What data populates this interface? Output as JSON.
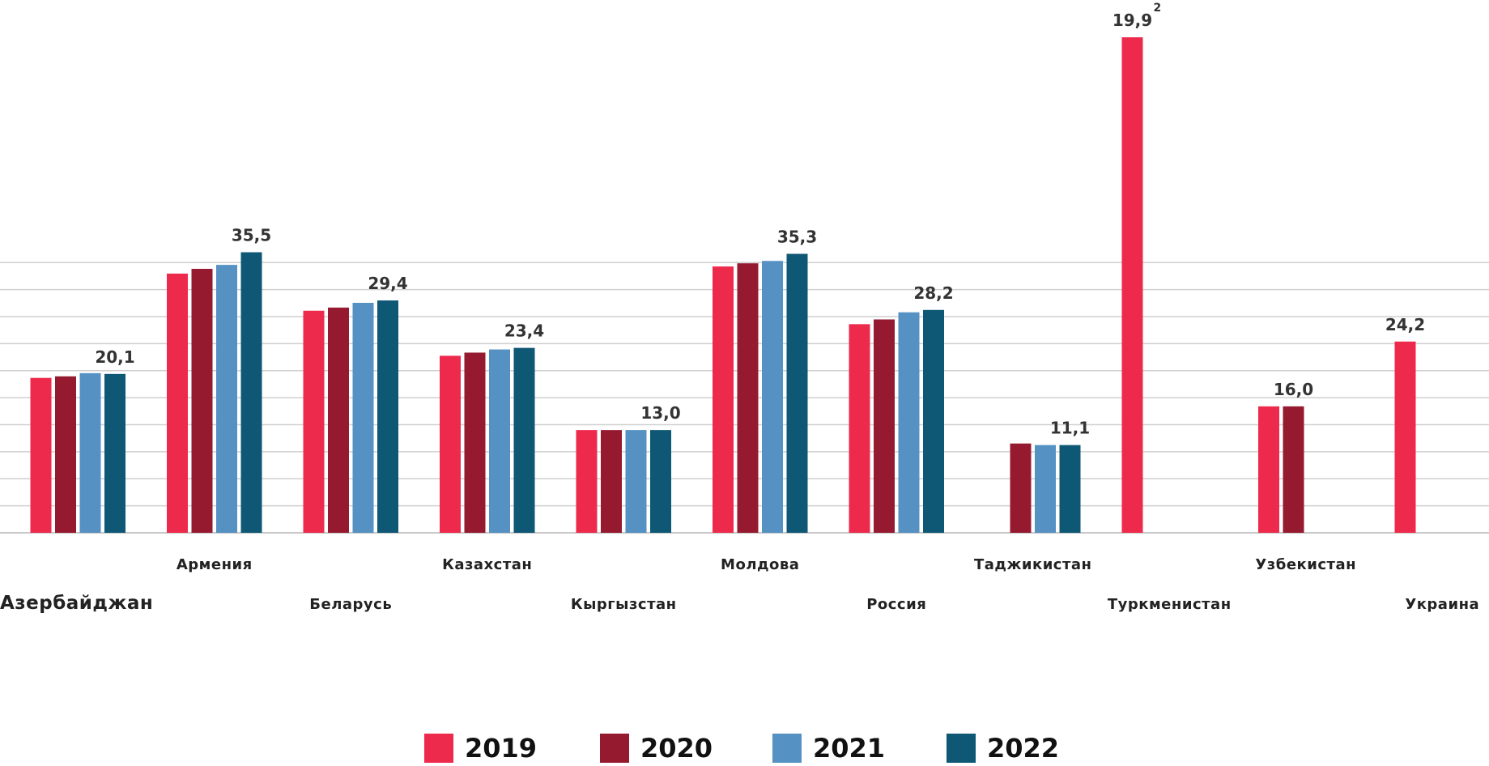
{
  "chart_data": {
    "type": "bar",
    "title": "",
    "xlabel": "",
    "ylabel": "",
    "grid": true,
    "grid_step": 3.42,
    "grid_lines": 10,
    "legend_position": "bottom-center",
    "categories": [
      "Азербайджан",
      "Армения",
      "Беларусь",
      "Казахстан",
      "Кыргызстан",
      "Молдова",
      "Россия",
      "Таджикистан",
      "Туркменистан",
      "Узбекистан",
      "Украина"
    ],
    "series": [
      {
        "name": "2019",
        "color": "#EE2A4C",
        "values": [
          19.6,
          32.8,
          28.1,
          22.4,
          13.0,
          33.7,
          26.4,
          null,
          19.9,
          16.0,
          24.2
        ]
      },
      {
        "name": "2020",
        "color": "#951A30",
        "values": [
          19.8,
          33.4,
          28.5,
          22.8,
          13.0,
          34.1,
          27.0,
          11.3,
          null,
          16.0,
          null
        ]
      },
      {
        "name": "2021",
        "color": "#5591C2",
        "values": [
          20.2,
          33.9,
          29.1,
          23.2,
          13.0,
          34.4,
          27.9,
          11.1,
          null,
          null,
          null
        ]
      },
      {
        "name": "2022",
        "color": "#0E5775",
        "values": [
          20.1,
          35.5,
          29.4,
          23.4,
          13.0,
          35.3,
          28.2,
          11.1,
          null,
          null,
          null
        ]
      }
    ],
    "data_labels": [
      "20,1",
      "35,5",
      "29,4",
      "23,4",
      "13,0",
      "35,3",
      "28,2",
      "11,1",
      "19,9",
      "16,0",
      "24,2"
    ],
    "data_label_footnotes": {
      "8": "2"
    },
    "broken_scale_note": {
      "category_index": 8,
      "plotted_as": 62.7
    }
  }
}
